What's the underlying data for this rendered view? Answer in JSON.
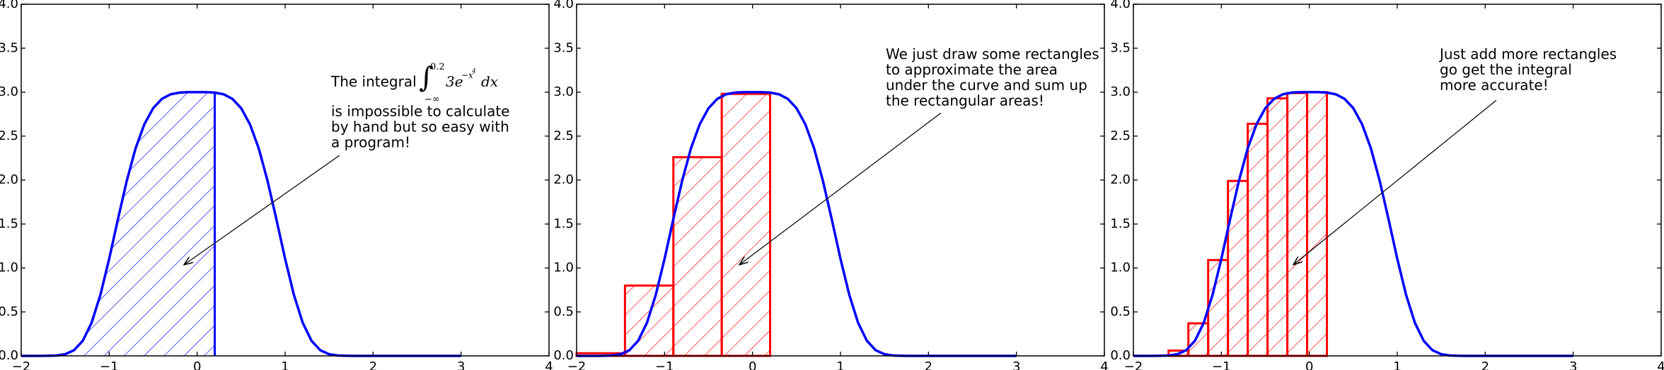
{
  "chart_data": [
    {
      "type": "line",
      "x": [
        -2.0,
        -1.9,
        -1.8,
        -1.7,
        -1.6,
        -1.5,
        -1.4,
        -1.3,
        -1.2,
        -1.1,
        -1.0,
        -0.9,
        -0.8,
        -0.7,
        -0.6,
        -0.5,
        -0.4,
        -0.3,
        -0.2,
        -0.1,
        0.0,
        0.1,
        0.2,
        0.3,
        0.4,
        0.5,
        0.6,
        0.7,
        0.8,
        0.9,
        1.0,
        1.1,
        1.2,
        1.3,
        1.4,
        1.5,
        1.6,
        1.7,
        1.8,
        1.9,
        2.0,
        2.1,
        2.2,
        2.3,
        2.4,
        2.5,
        2.6,
        2.7,
        2.8,
        2.9,
        3.0
      ],
      "series": [
        {
          "color": "#0000ff",
          "values": [
            0,
            0,
            0,
            0.001,
            0.004,
            0.019,
            0.064,
            0.172,
            0.377,
            0.694,
            1.104,
            1.557,
            1.992,
            2.361,
            2.635,
            2.818,
            2.924,
            2.976,
            2.995,
            3.0,
            3.0,
            3.0,
            2.995,
            2.976,
            2.924,
            2.818,
            2.635,
            2.361,
            1.992,
            1.557,
            1.104,
            0.694,
            0.377,
            0.172,
            0.064,
            0.019,
            0.004,
            0.001,
            0,
            0,
            0,
            0,
            0,
            0,
            0,
            0,
            0,
            0,
            0,
            0,
            0
          ]
        }
      ],
      "hatch": {
        "color": "#0000ff",
        "x_from": -2,
        "x_to": 0.2
      },
      "xlim": [
        -2,
        4
      ],
      "ylim": [
        0,
        4
      ],
      "xticks": [
        {
          "value": -2,
          "label": "−2"
        },
        {
          "value": -1,
          "label": "−1"
        },
        0,
        1,
        2,
        3,
        4
      ],
      "yticks": [
        {
          "value": 0,
          "label": "0.0"
        },
        {
          "value": 0.5,
          "label": "0.5"
        },
        {
          "value": 1,
          "label": "1.0"
        },
        {
          "value": 1.5,
          "label": "1.5"
        },
        {
          "value": 2,
          "label": "2.0"
        },
        {
          "value": 2.5,
          "label": "2.5"
        },
        {
          "value": 3,
          "label": "3.0"
        },
        {
          "value": 3.5,
          "label": "3.5"
        },
        {
          "value": 4,
          "label": "4.0"
        }
      ],
      "annotation": {
        "lead": "The integral",
        "formula": {
          "integral": "∫",
          "upper": "0.2",
          "lower": "−∞",
          "body": "3e",
          "exponent": "−x",
          "power": "4",
          "dx": "dx"
        },
        "lines": [
          "is impossible to calculate",
          "by hand but so easy with",
          "a program!"
        ]
      }
    },
    {
      "type": "line",
      "x": [
        -2.0,
        -1.9,
        -1.8,
        -1.7,
        -1.6,
        -1.5,
        -1.4,
        -1.3,
        -1.2,
        -1.1,
        -1.0,
        -0.9,
        -0.8,
        -0.7,
        -0.6,
        -0.5,
        -0.4,
        -0.3,
        -0.2,
        -0.1,
        0.0,
        0.1,
        0.2,
        0.3,
        0.4,
        0.5,
        0.6,
        0.7,
        0.8,
        0.9,
        1.0,
        1.1,
        1.2,
        1.3,
        1.4,
        1.5,
        1.6,
        1.7,
        1.8,
        1.9,
        2.0,
        2.1,
        2.2,
        2.3,
        2.4,
        2.5,
        2.6,
        2.7,
        2.8,
        2.9,
        3.0
      ],
      "series": [
        {
          "color": "#0000ff",
          "values": [
            0,
            0,
            0,
            0.001,
            0.004,
            0.019,
            0.064,
            0.172,
            0.377,
            0.694,
            1.104,
            1.557,
            1.992,
            2.361,
            2.635,
            2.818,
            2.924,
            2.976,
            2.995,
            3.0,
            3.0,
            3.0,
            2.995,
            2.976,
            2.924,
            2.818,
            2.635,
            2.361,
            1.992,
            1.557,
            1.104,
            0.694,
            0.377,
            0.172,
            0.064,
            0.019,
            0.004,
            0.001,
            0,
            0,
            0,
            0,
            0,
            0,
            0,
            0,
            0,
            0,
            0,
            0,
            0
          ]
        }
      ],
      "rectangles": {
        "color": "#ff0000",
        "bins": [
          -2,
          -1.45,
          -0.9,
          -0.35,
          0.2
        ],
        "values": [
          0.03,
          0.8,
          2.26,
          2.98
        ]
      },
      "xlim": [
        -2,
        4
      ],
      "ylim": [
        0,
        4
      ],
      "xticks": [
        {
          "value": -2,
          "label": "−2"
        },
        {
          "value": -1,
          "label": "−1"
        },
        0,
        1,
        2,
        3,
        4
      ],
      "yticks": [
        {
          "value": 0,
          "label": "0.0"
        },
        {
          "value": 0.5,
          "label": "0.5"
        },
        {
          "value": 1,
          "label": "1.0"
        },
        {
          "value": 1.5,
          "label": "1.5"
        },
        {
          "value": 2,
          "label": "2.0"
        },
        {
          "value": 2.5,
          "label": "2.5"
        },
        {
          "value": 3,
          "label": "3.0"
        },
        {
          "value": 3.5,
          "label": "3.5"
        },
        {
          "value": 4,
          "label": "4.0"
        }
      ],
      "annotation": {
        "lines": [
          "We just draw some rectangles",
          "to approximate the area",
          "under the curve and sum up",
          "the rectangular areas!"
        ]
      }
    },
    {
      "type": "line",
      "x": [
        -2.0,
        -1.9,
        -1.8,
        -1.7,
        -1.6,
        -1.5,
        -1.4,
        -1.3,
        -1.2,
        -1.1,
        -1.0,
        -0.9,
        -0.8,
        -0.7,
        -0.6,
        -0.5,
        -0.4,
        -0.3,
        -0.2,
        -0.1,
        0.0,
        0.1,
        0.2,
        0.3,
        0.4,
        0.5,
        0.6,
        0.7,
        0.8,
        0.9,
        1.0,
        1.1,
        1.2,
        1.3,
        1.4,
        1.5,
        1.6,
        1.7,
        1.8,
        1.9,
        2.0,
        2.1,
        2.2,
        2.3,
        2.4,
        2.5,
        2.6,
        2.7,
        2.8,
        2.9,
        3.0
      ],
      "series": [
        {
          "color": "#0000ff",
          "values": [
            0,
            0,
            0,
            0.001,
            0.004,
            0.019,
            0.064,
            0.172,
            0.377,
            0.694,
            1.104,
            1.557,
            1.992,
            2.361,
            2.635,
            2.818,
            2.924,
            2.976,
            2.995,
            3.0,
            3.0,
            3.0,
            2.995,
            2.976,
            2.924,
            2.818,
            2.635,
            2.361,
            1.992,
            1.557,
            1.104,
            0.694,
            0.377,
            0.172,
            0.064,
            0.019,
            0.004,
            0.001,
            0,
            0,
            0,
            0,
            0,
            0,
            0,
            0,
            0,
            0,
            0,
            0,
            0
          ]
        }
      ],
      "rectangles": {
        "color": "#ff0000",
        "bins": [
          -1.6,
          -1.375,
          -1.15,
          -0.925,
          -0.7,
          -0.475,
          -0.25,
          -0.025,
          0.2
        ],
        "values": [
          0.06,
          0.37,
          1.09,
          1.99,
          2.64,
          2.93,
          2.99,
          3.0
        ]
      },
      "xlim": [
        -2,
        4
      ],
      "ylim": [
        0,
        4
      ],
      "xticks": [
        {
          "value": -2,
          "label": "−2"
        },
        {
          "value": -1,
          "label": "−1"
        },
        0,
        1,
        2,
        3,
        4
      ],
      "yticks": [
        {
          "value": 0,
          "label": "0.0"
        },
        {
          "value": 0.5,
          "label": "0.5"
        },
        {
          "value": 1,
          "label": "1.0"
        },
        {
          "value": 1.5,
          "label": "1.5"
        },
        {
          "value": 2,
          "label": "2.0"
        },
        {
          "value": 2.5,
          "label": "2.5"
        },
        {
          "value": 3,
          "label": "3.0"
        },
        {
          "value": 3.5,
          "label": "3.5"
        },
        {
          "value": 4,
          "label": "4.0"
        }
      ],
      "annotation": {
        "lines": [
          "Just add more rectangles",
          "go get the integral",
          "more accurate!"
        ]
      }
    }
  ]
}
